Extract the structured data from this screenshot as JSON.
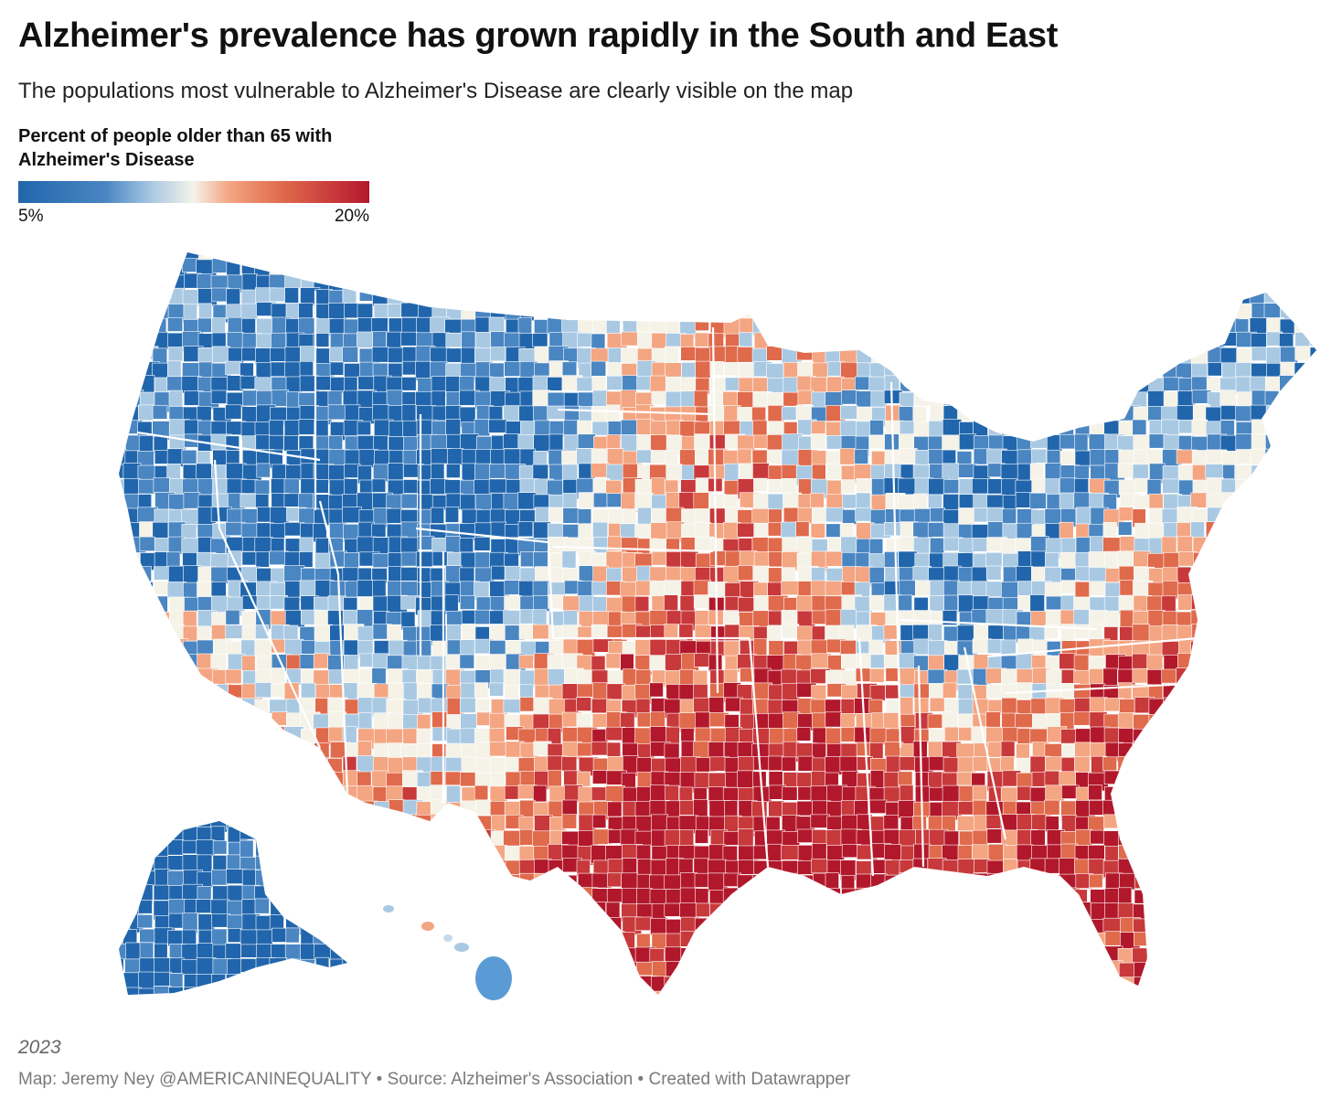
{
  "title": "Alzheimer's prevalence has grown rapidly in the South and East",
  "subtitle": "The populations most vulnerable to Alzheimer's Disease are clearly visible on the map",
  "legend": {
    "title": "Percent of people older than 65 with Alzheimer's Disease",
    "min_label": "5%",
    "max_label": "20%",
    "min_value": 5,
    "max_value": 20,
    "colors": [
      "#2166ac",
      "#4a86c2",
      "#a9c9e3",
      "#f5f2e8",
      "#f4a582",
      "#e06a4c",
      "#c8393b",
      "#b2182b"
    ]
  },
  "map": {
    "type": "choropleth",
    "geography": "US counties",
    "regions_shown": [
      "Contiguous United States",
      "Alaska",
      "Hawaii"
    ],
    "high_prevalence_areas": [
      "South",
      "East"
    ],
    "low_prevalence_areas": [
      "Northwest",
      "Mountain West",
      "Upper Midwest",
      "Appalachia",
      "New England",
      "Alaska"
    ]
  },
  "footer": {
    "year": "2023",
    "credit": "Map: Jeremy Ney @AMERICANINEQUALITY • Source: Alzheimer's Association • Created with Datawrapper"
  }
}
